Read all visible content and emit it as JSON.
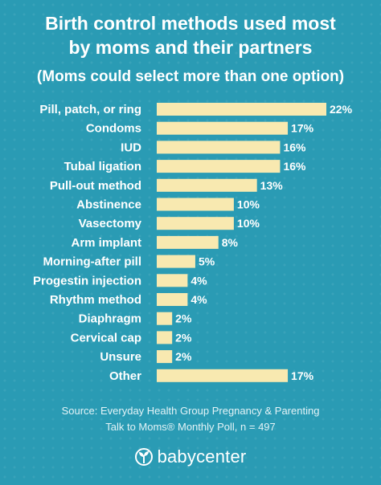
{
  "title_line1": "Birth control methods used most",
  "title_line2": "by moms and their partners",
  "subtitle": "(Moms could select more than one option)",
  "source_line1": "Source: Everyday Health Group Pregnancy & Parenting",
  "source_line2": "Talk to Moms® Monthly Poll, n = 497",
  "logo_text": "babycenter",
  "colors": {
    "background": "#2a9bb4",
    "bar": "#f8e9b0",
    "text": "#ffffff"
  },
  "chart_data": {
    "type": "bar",
    "orientation": "horizontal",
    "title": "Birth control methods used most by moms and their partners",
    "subtitle": "(Moms could select more than one option)",
    "categories": [
      "Pill, patch, or ring",
      "Condoms",
      "IUD",
      "Tubal ligation",
      "Pull-out method",
      "Abstinence",
      "Vasectomy",
      "Arm implant",
      "Morning-after pill",
      "Progestin injection",
      "Rhythm method",
      "Diaphragm",
      "Cervical cap",
      "Unsure",
      "Other"
    ],
    "values": [
      22,
      17,
      16,
      16,
      13,
      10,
      10,
      8,
      5,
      4,
      4,
      2,
      2,
      2,
      17
    ],
    "value_labels": [
      "22%",
      "17%",
      "16%",
      "16%",
      "13%",
      "10%",
      "10%",
      "8%",
      "5%",
      "4%",
      "4%",
      "2%",
      "2%",
      "2%",
      "17%"
    ],
    "unit": "%",
    "grid": false,
    "legend": "none"
  }
}
